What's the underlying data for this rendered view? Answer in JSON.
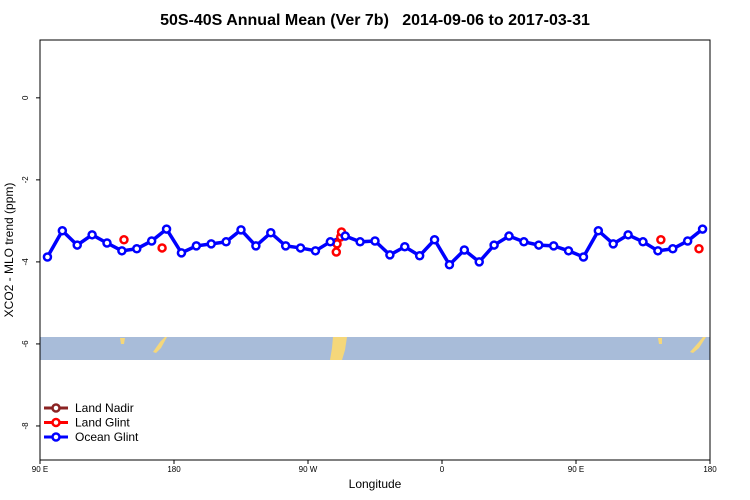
{
  "chart_data": {
    "type": "line",
    "title": "50S-40S Annual Mean (Ver 7b)   2014-09-06 to 2017-03-31",
    "xlabel": "Longitude",
    "ylabel": "XCO2 - MLO trend (ppm)",
    "xlim": [
      90,
      540
    ],
    "ylim": [
      -8.83,
      1.41
    ],
    "xticks": [
      {
        "value": 90,
        "label": "90 E"
      },
      180,
      {
        "value": 270,
        "label": "90 W"
      },
      {
        "value": 360,
        "label": "0"
      },
      {
        "value": 450,
        "label": "90 E"
      },
      {
        "value": 540,
        "label": "180"
      }
    ],
    "yticks": [
      0,
      -2,
      -4,
      -6,
      -8
    ],
    "legend": "lower left",
    "series": [
      {
        "name": "Land Nadir",
        "color": "#8b2323",
        "x": [],
        "values": []
      },
      {
        "name": "Land Glint",
        "color": "#ff0000",
        "x": [
          146.4,
          172,
          289,
          289.5,
          292,
          292.5,
          507,
          532.6
        ],
        "values": [
          -3.46,
          -3.66,
          -3.76,
          -3.56,
          -3.39,
          -3.27,
          -3.46,
          -3.68
        ]
      },
      {
        "name": "Ocean Glint",
        "color": "#0000ff",
        "x": [
          95,
          105,
          115,
          125,
          135,
          145,
          155,
          165,
          175,
          185,
          195,
          205,
          215,
          225,
          235,
          245,
          255,
          265,
          275,
          285,
          295,
          305,
          315,
          325,
          335,
          345,
          355,
          365,
          375,
          385,
          395,
          405,
          415,
          425,
          435,
          445,
          455,
          465,
          475,
          485,
          495,
          505,
          515,
          525,
          535
        ],
        "values": [
          -3.88,
          -3.24,
          -3.59,
          -3.34,
          -3.54,
          -3.73,
          -3.68,
          -3.49,
          -3.2,
          -3.78,
          -3.61,
          -3.56,
          -3.51,
          -3.22,
          -3.61,
          -3.29,
          -3.61,
          -3.66,
          -3.73,
          -3.51,
          -3.37,
          -3.51,
          -3.49,
          -3.83,
          -3.63,
          -3.85,
          -3.46,
          -4.07,
          -3.71,
          -4.0,
          -3.59,
          -3.37,
          -3.51,
          -3.59,
          -3.61,
          -3.73,
          -3.88,
          -3.24,
          -3.56,
          -3.34,
          -3.51,
          -3.73,
          -3.68,
          -3.49,
          -3.2
        ]
      }
    ]
  }
}
